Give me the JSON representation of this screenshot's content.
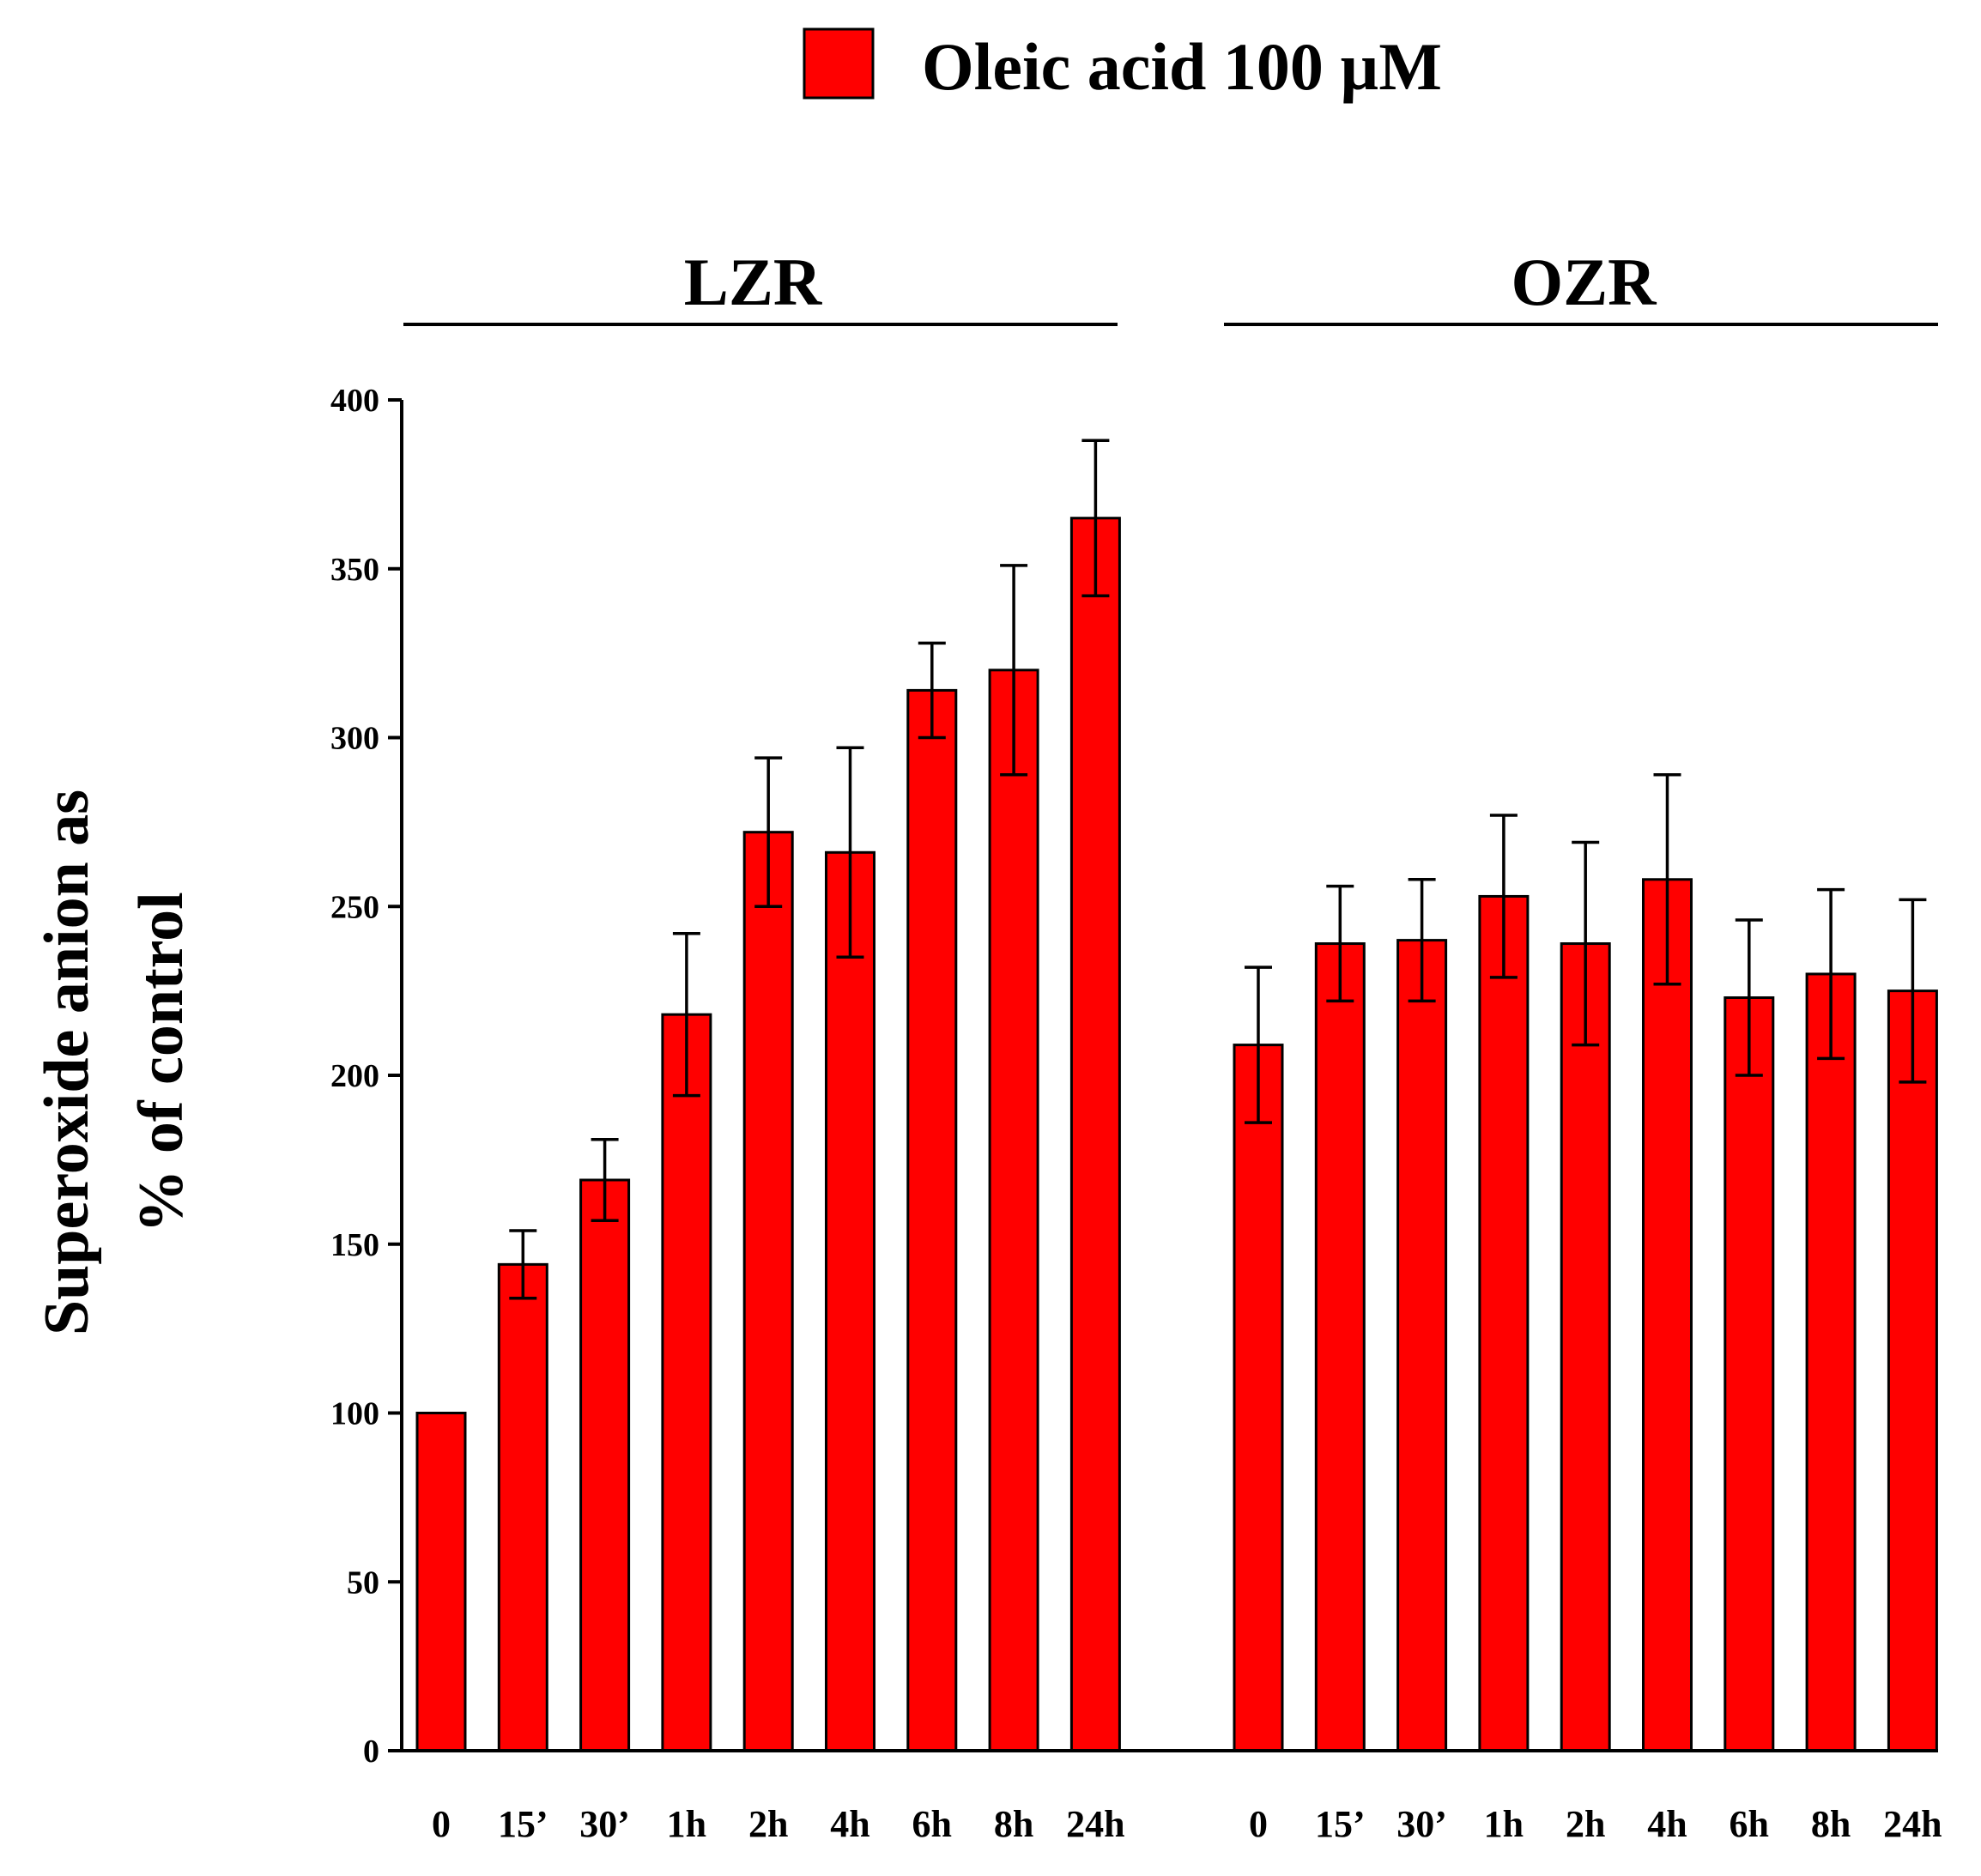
{
  "chart_data": {
    "type": "bar",
    "title": "",
    "ylabel_lines": [
      "Superoxide anion as",
      "% of control"
    ],
    "xlabel": "",
    "ylim": [
      0,
      400
    ],
    "yticks": [
      0,
      50,
      100,
      150,
      200,
      250,
      300,
      350,
      400
    ],
    "legend": {
      "label": "Oleic acid 100 µM",
      "color": "#ff0000",
      "position": "top-center"
    },
    "bar_color": "#ff0000",
    "groups": [
      {
        "name": "LZR",
        "categories": [
          "0",
          "15’",
          "30’",
          "1h",
          "2h",
          "4h",
          "6h",
          "8h",
          "24h"
        ],
        "values": [
          100,
          144,
          169,
          218,
          272,
          266,
          314,
          320,
          365
        ],
        "errors": [
          0,
          10,
          12,
          24,
          22,
          31,
          14,
          31,
          23
        ]
      },
      {
        "name": "OZR",
        "categories": [
          "0",
          "15’",
          "30’",
          "1h",
          "2h",
          "4h",
          "6h",
          "8h",
          "24h"
        ],
        "values": [
          209,
          239,
          240,
          253,
          239,
          258,
          223,
          230,
          225
        ],
        "errors": [
          23,
          17,
          18,
          24,
          30,
          31,
          23,
          25,
          27
        ]
      }
    ]
  }
}
